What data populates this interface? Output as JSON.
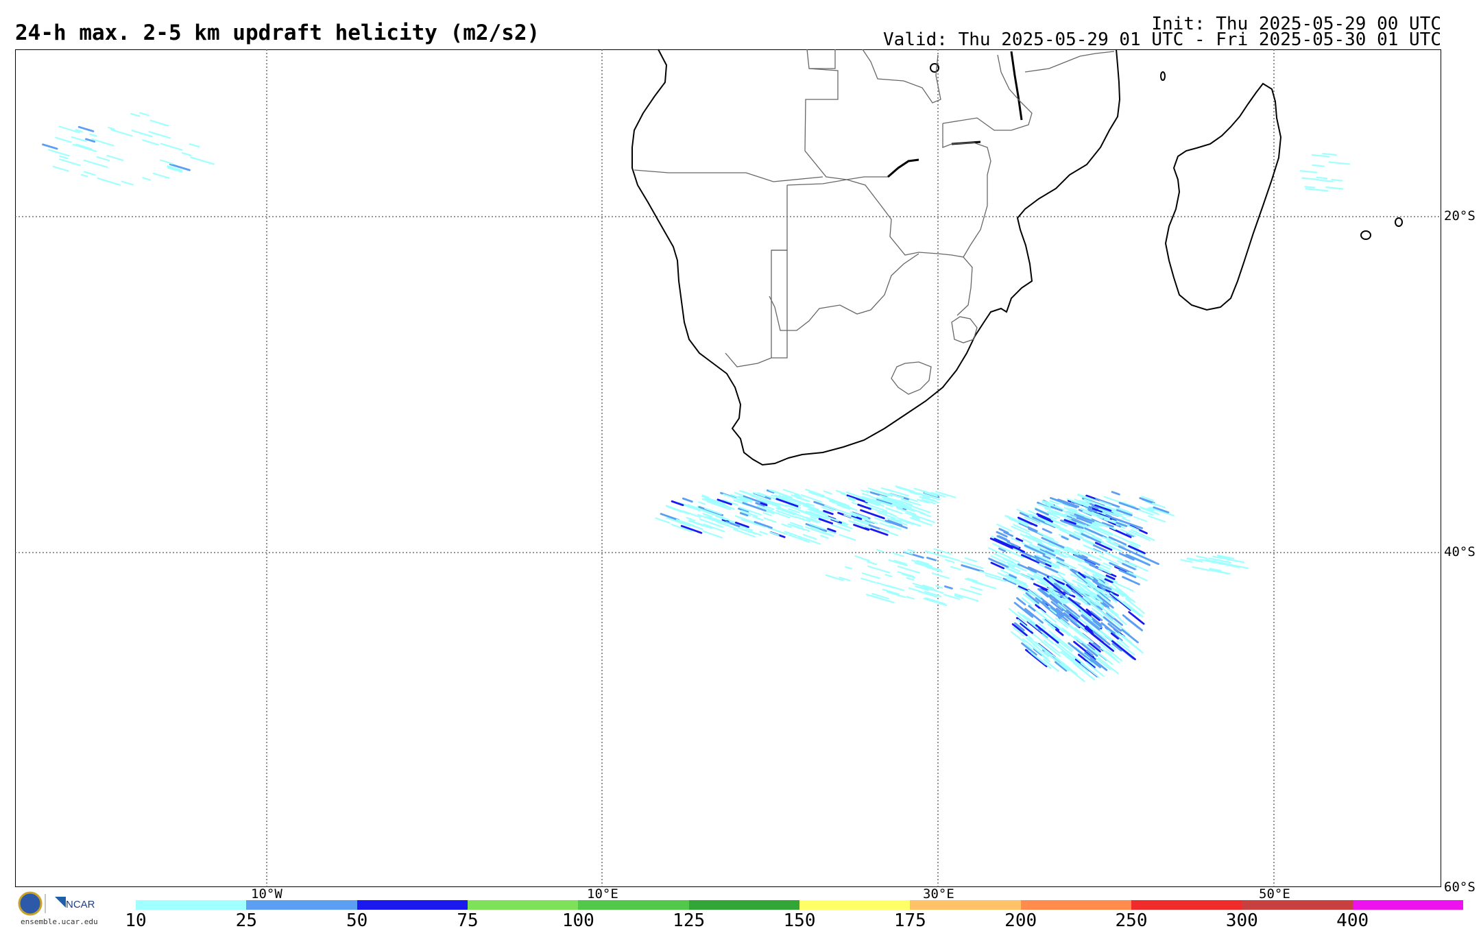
{
  "header": {
    "title": "24-h max. 2-5 km updraft helicity (m2/s2)",
    "init": "Init: Thu 2025-05-29 00 UTC",
    "valid": "Valid: Thu 2025-05-29 01 UTC - Fri 2025-05-30 01 UTC"
  },
  "map": {
    "lat_labels": [
      "20°S",
      "40°S",
      "60°S"
    ],
    "lon_labels": [
      "10°W",
      "10°E",
      "30°E",
      "50°E"
    ]
  },
  "colorbar": {
    "ticks": [
      "10",
      "25",
      "50",
      "75",
      "100",
      "125",
      "150",
      "175",
      "200",
      "250",
      "300",
      "400"
    ],
    "colors": [
      "#a0ffff",
      "#5b9ef2",
      "#1a1aee",
      "#7fe05a",
      "#52c84a",
      "#31a535",
      "#ffff66",
      "#ffc266",
      "#ff8c4c",
      "#f02b2b",
      "#c84040",
      "#ee12ee"
    ]
  },
  "footer": {
    "logo_text": "NCAR",
    "url": "ensemble.ucar.edu"
  },
  "colors": {
    "light": "#a0ffff",
    "mid": "#5b9ef2",
    "dark": "#1a1aee"
  }
}
